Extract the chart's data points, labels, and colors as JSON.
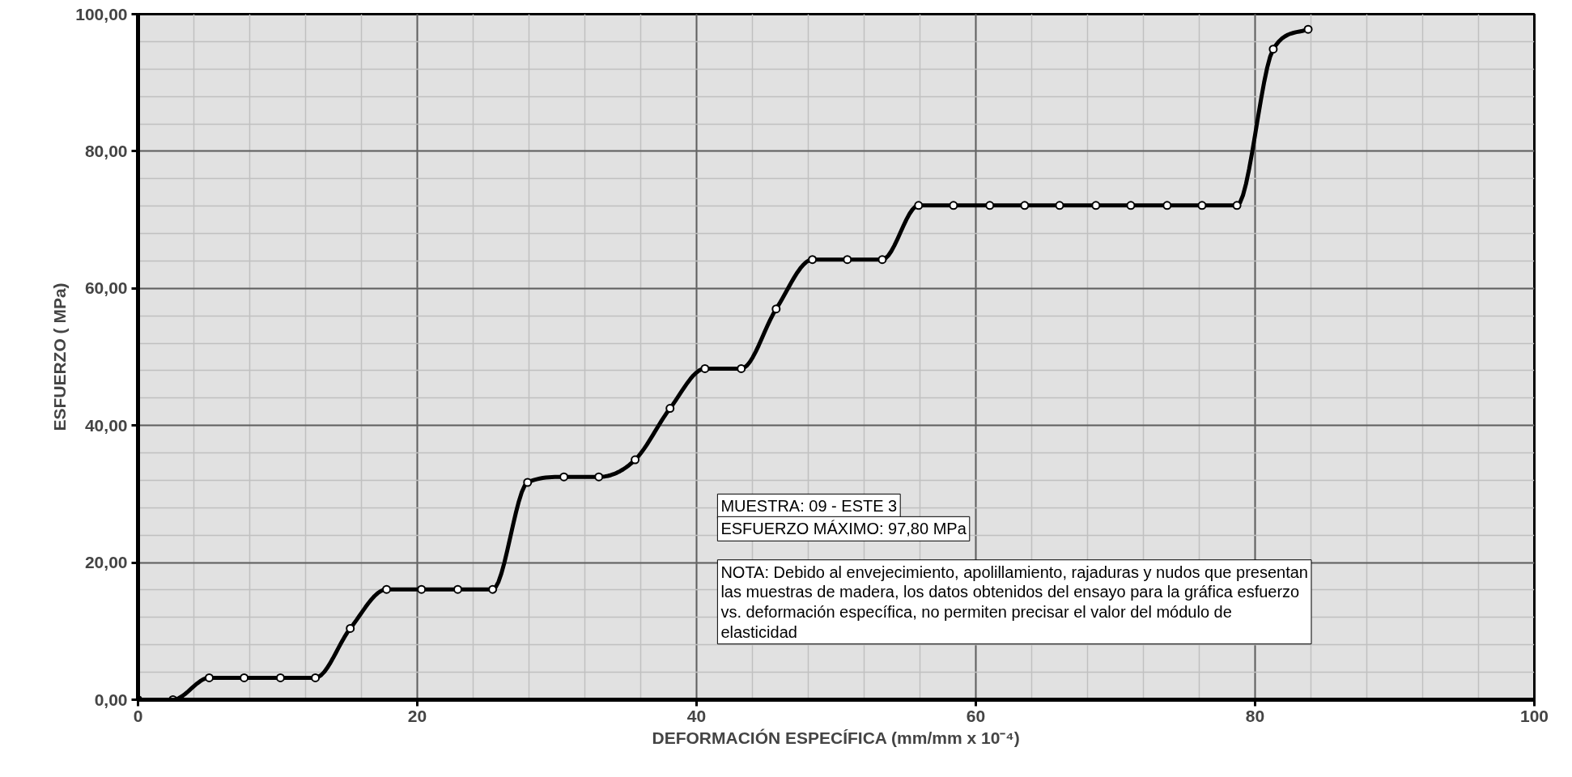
{
  "chart_data": {
    "type": "line",
    "xlabel": "DEFORMACIÓN ESPECÍFICA (mm/mm x 10⁻⁴)",
    "ylabel": "ESFUERZO ( MPa)",
    "x": [
      0,
      2.5,
      5.1,
      7.6,
      10.2,
      12.7,
      15.2,
      17.8,
      20.3,
      22.9,
      25.4,
      27.9,
      30.5,
      33.0,
      35.6,
      38.1,
      40.6,
      43.2,
      45.7,
      48.3,
      50.8,
      53.3,
      55.9,
      58.4,
      61.0,
      63.5,
      66.0,
      68.6,
      71.1,
      73.7,
      76.2,
      78.7,
      81.3,
      83.8
    ],
    "series": [
      {
        "color": "#000000",
        "values": [
          0,
          0,
          3.2,
          3.2,
          3.2,
          3.2,
          10.4,
          16.1,
          16.1,
          16.1,
          16.1,
          31.7,
          32.5,
          32.5,
          35.0,
          42.5,
          48.3,
          48.3,
          57.0,
          64.2,
          64.2,
          64.2,
          72.1,
          72.1,
          72.1,
          72.1,
          72.1,
          72.1,
          72.1,
          72.1,
          72.1,
          72.1,
          94.9,
          97.8
        ]
      }
    ],
    "xlim": [
      0,
      100
    ],
    "xticks": [
      0,
      20,
      40,
      60,
      80,
      100
    ],
    "ylim": [
      0,
      100
    ],
    "yticks": [
      {
        "value": 0,
        "label": "0,00"
      },
      {
        "value": 20,
        "label": "20,00"
      },
      {
        "value": 40,
        "label": "40,00"
      },
      {
        "value": 60,
        "label": "60,00"
      },
      {
        "value": 80,
        "label": "80,00"
      },
      {
        "value": 100,
        "label": "100,00"
      }
    ],
    "grid": true,
    "marker": "circle",
    "line_style": "solid",
    "annotations": [
      "MUESTRA: 09 - ESTE 3",
      "ESFUERZO MÁXIMO: 97,80 MPa",
      "NOTA: Debido al envejecimiento, apolillamiento, rajaduras y nudos que presentan las muestras de madera, los datos obtenidos del ensayo para la gráfica esfuerzo vs. deformación específica, no permiten precisar el valor del módulo de elasticidad"
    ]
  }
}
